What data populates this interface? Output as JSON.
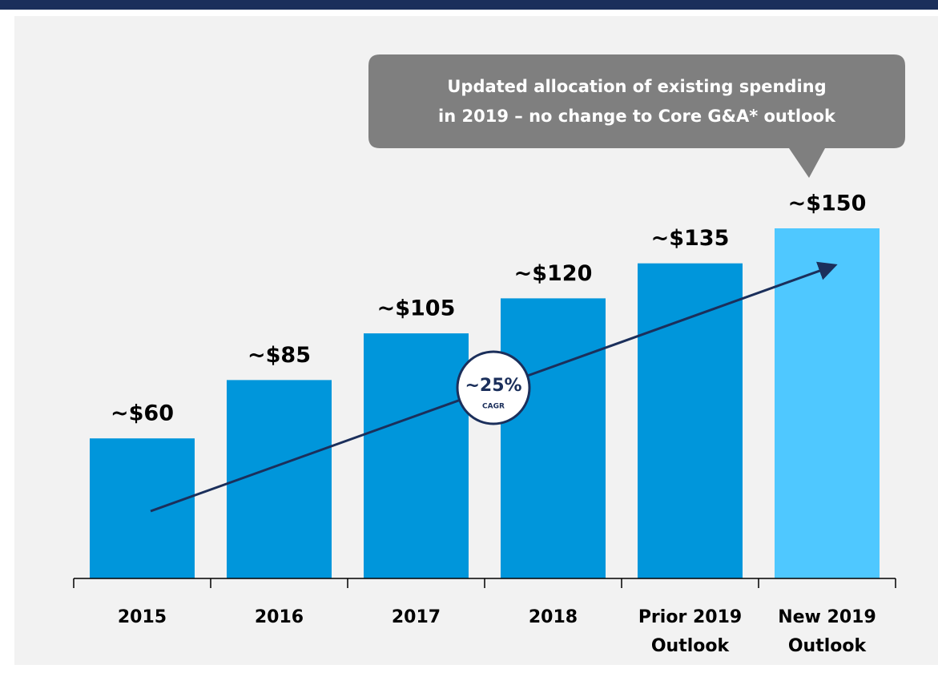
{
  "chart_data": {
    "type": "bar",
    "categories": [
      "2015",
      "2016",
      "2017",
      "2018",
      "Prior 2019 Outlook",
      "New 2019 Outlook"
    ],
    "values": [
      60,
      85,
      105,
      120,
      135,
      150
    ],
    "value_labels": [
      "~$60",
      "~$85",
      "~$105",
      "~$120",
      "~$135",
      "~$150"
    ],
    "colors": [
      "#0096db",
      "#0096db",
      "#0096db",
      "#0096db",
      "#0096db",
      "#4fc8ff"
    ],
    "callout": [
      "Updated allocation of existing spending",
      "in 2019 – no change to Core G&A* outlook"
    ],
    "cagr": {
      "value": "~25%",
      "label": "CAGR"
    }
  }
}
